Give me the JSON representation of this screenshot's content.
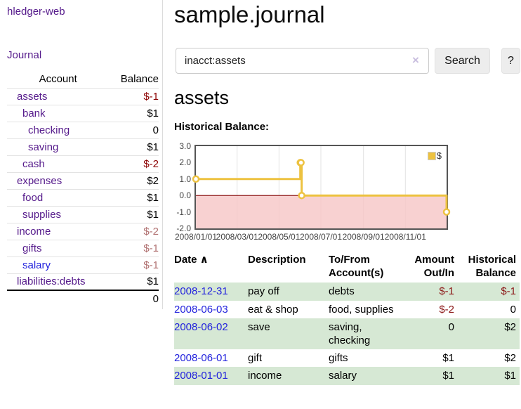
{
  "app": {
    "brand": "hledger-web"
  },
  "sidebar": {
    "nav": [
      {
        "label": "Journal"
      }
    ],
    "table": {
      "headers": {
        "account": "Account",
        "balance": "Balance"
      }
    },
    "accounts": [
      {
        "name": "assets",
        "depth": 1,
        "bold": true,
        "link": "visited",
        "balance": "$-1",
        "balance_style": "neg-strong"
      },
      {
        "name": "bank",
        "depth": 2,
        "bold": true,
        "link": "visited",
        "balance": "$1",
        "balance_style": "normal"
      },
      {
        "name": "checking",
        "depth": 3,
        "bold": true,
        "link": "visited",
        "balance": "0",
        "balance_style": "normal"
      },
      {
        "name": "saving",
        "depth": 3,
        "bold": true,
        "link": "visited",
        "balance": "$1",
        "balance_style": "normal"
      },
      {
        "name": "cash",
        "depth": 2,
        "bold": true,
        "link": "visited",
        "balance": "$-2",
        "balance_style": "neg-strong"
      },
      {
        "name": "expenses",
        "depth": 1,
        "bold": false,
        "link": "visited",
        "balance": "$2",
        "balance_style": "normal"
      },
      {
        "name": "food",
        "depth": 2,
        "bold": false,
        "link": "visited",
        "balance": "$1",
        "balance_style": "normal"
      },
      {
        "name": "supplies",
        "depth": 2,
        "bold": false,
        "link": "visited",
        "balance": "$1",
        "balance_style": "normal"
      },
      {
        "name": "income",
        "depth": 1,
        "bold": false,
        "link": "visited",
        "balance": "$-2",
        "balance_style": "neg-muted"
      },
      {
        "name": "gifts",
        "depth": 2,
        "bold": false,
        "link": "visited",
        "balance": "$-1",
        "balance_style": "neg-muted"
      },
      {
        "name": "salary",
        "depth": 2,
        "bold": false,
        "link": "unvisited",
        "balance": "$-1",
        "balance_style": "neg-muted"
      },
      {
        "name": "liabilities:debts",
        "depth": 1,
        "bold": false,
        "link": "visited",
        "balance": "$1",
        "balance_style": "normal"
      }
    ],
    "total": "0"
  },
  "main": {
    "title": "sample.journal",
    "search": {
      "value": "inacct:assets",
      "clear_icon": "×",
      "button": "Search",
      "help_button": "?"
    },
    "account_heading": "assets",
    "chart_label": "Historical Balance:"
  },
  "chart_data": {
    "type": "line",
    "step": true,
    "title": "Historical Balance",
    "series": [
      {
        "name": "$",
        "color": "#edc240",
        "points": [
          [
            "2008-01-01",
            1
          ],
          [
            "2008-06-01",
            2
          ],
          [
            "2008-06-02",
            2
          ],
          [
            "2008-06-03",
            0
          ],
          [
            "2008-12-31",
            -1
          ]
        ]
      }
    ],
    "x_range": [
      "2008-01-01",
      "2008-12-31"
    ],
    "y_range": [
      -2,
      3
    ],
    "x_ticks": [
      "2008/01/01",
      "2008/03/01",
      "2008/05/01",
      "2008/07/01",
      "2008/09/01",
      "2008/11/01"
    ],
    "y_ticks": [
      3.0,
      2.0,
      1.0,
      0.0,
      -1.0,
      -2.0
    ],
    "grid": true,
    "legend_position": "top-right",
    "legend": {
      "label": "$",
      "swatch_color": "#edc240"
    },
    "negative_region_color": "#f6c6c6",
    "zero_line_color": "#800000"
  },
  "register": {
    "headers": [
      {
        "key": "date",
        "lines": [
          "Date"
        ],
        "sort_indicator": "∧",
        "align": "left",
        "sortable": true
      },
      {
        "key": "description",
        "lines": [
          "Description"
        ],
        "align": "left",
        "sortable": false
      },
      {
        "key": "accounts",
        "lines": [
          "To/From",
          "Account(s)"
        ],
        "align": "left",
        "sortable": false
      },
      {
        "key": "amount",
        "lines": [
          "Amount",
          "Out/In"
        ],
        "align": "right",
        "sortable": false
      },
      {
        "key": "balance",
        "lines": [
          "Historical",
          "Balance"
        ],
        "align": "right",
        "sortable": false
      }
    ],
    "rows": [
      {
        "date": "2008-12-31",
        "description": "pay off",
        "accounts": "debts",
        "amount": "$-1",
        "amount_negative": true,
        "balance": "$-1",
        "balance_negative": true
      },
      {
        "date": "2008-06-03",
        "description": "eat & shop",
        "accounts": "food, supplies",
        "amount": "$-2",
        "amount_negative": true,
        "balance": "0",
        "balance_negative": false
      },
      {
        "date": "2008-06-02",
        "description": "save",
        "accounts": "saving, checking",
        "amount": "0",
        "amount_negative": false,
        "balance": "$2",
        "balance_negative": false
      },
      {
        "date": "2008-06-01",
        "description": "gift",
        "accounts": "gifts",
        "amount": "$1",
        "amount_negative": false,
        "balance": "$2",
        "balance_negative": false
      },
      {
        "date": "2008-01-01",
        "description": "income",
        "accounts": "salary",
        "amount": "$1",
        "amount_negative": false,
        "balance": "$1",
        "balance_negative": false
      }
    ]
  }
}
